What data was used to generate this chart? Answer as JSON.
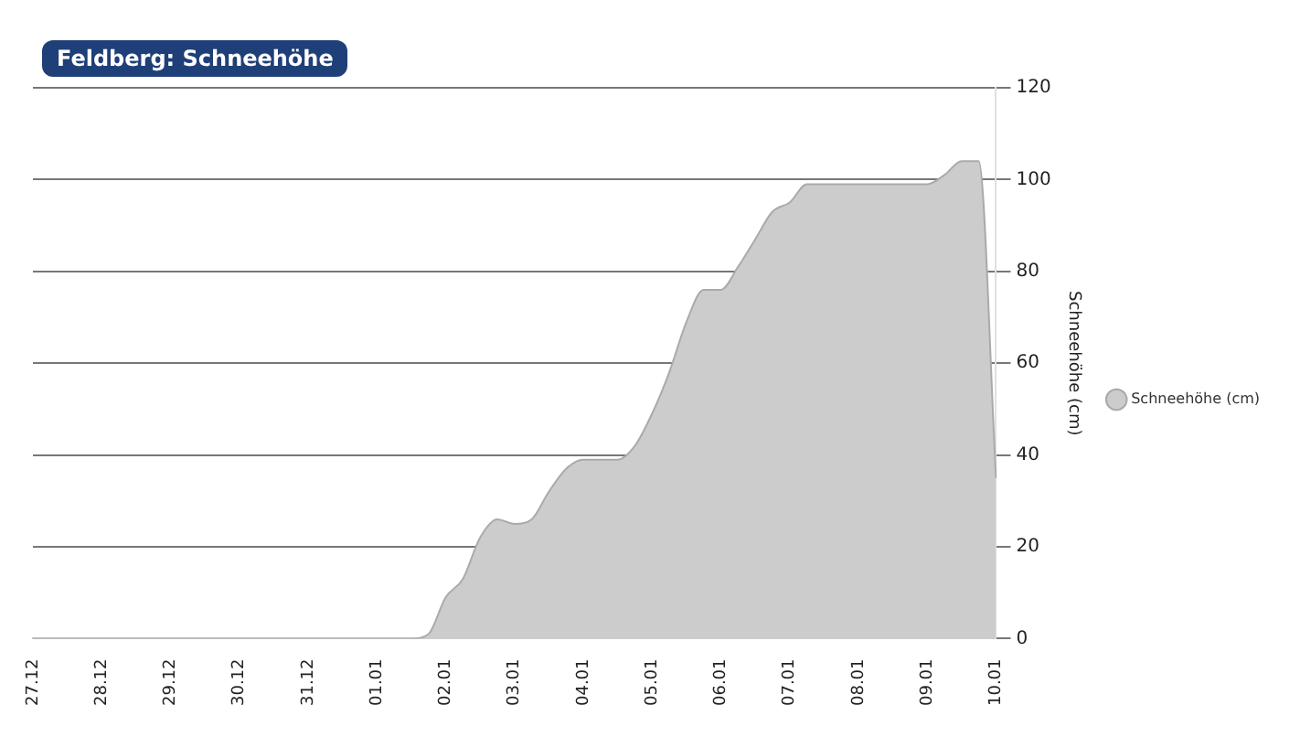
{
  "chart_data": {
    "type": "area",
    "title": "Feldberg: Schneehöhe",
    "ylabel": "Schneehöhe (cm)",
    "categories": [
      "27.12",
      null,
      null,
      null,
      "28.12",
      null,
      null,
      null,
      "29.12",
      null,
      null,
      null,
      "30.12",
      null,
      null,
      null,
      "31.12",
      null,
      null,
      null,
      "01.01",
      null,
      null,
      null,
      "02.01",
      null,
      null,
      null,
      "03.01",
      null,
      null,
      null,
      "04.01",
      null,
      null,
      null,
      "05.01",
      null,
      null,
      null,
      "06.01",
      null,
      null,
      null,
      "07.01",
      null,
      null,
      null,
      "08.01",
      null,
      null,
      null,
      "09.01",
      null,
      null,
      null,
      "10.01"
    ],
    "series": [
      {
        "name": "Schneehöhe (cm)",
        "color": "#cccccc",
        "values": [
          0,
          0,
          0,
          0,
          0,
          0,
          0,
          0,
          0,
          0,
          0,
          0,
          0,
          0,
          0,
          0,
          0,
          0,
          0,
          0,
          0,
          0,
          0,
          1,
          9,
          13,
          22,
          26,
          25,
          26,
          32,
          37,
          39,
          39,
          39,
          42,
          49,
          58,
          69,
          76,
          76,
          81,
          87,
          93,
          95,
          99,
          99,
          99,
          99,
          99,
          99,
          99,
          99,
          101,
          104,
          104,
          35
        ]
      }
    ],
    "ylim": [
      0,
      120
    ],
    "yticks": [
      0,
      20,
      40,
      60,
      80,
      100,
      120
    ],
    "grid": "y",
    "legend": "right",
    "marker": "none"
  }
}
